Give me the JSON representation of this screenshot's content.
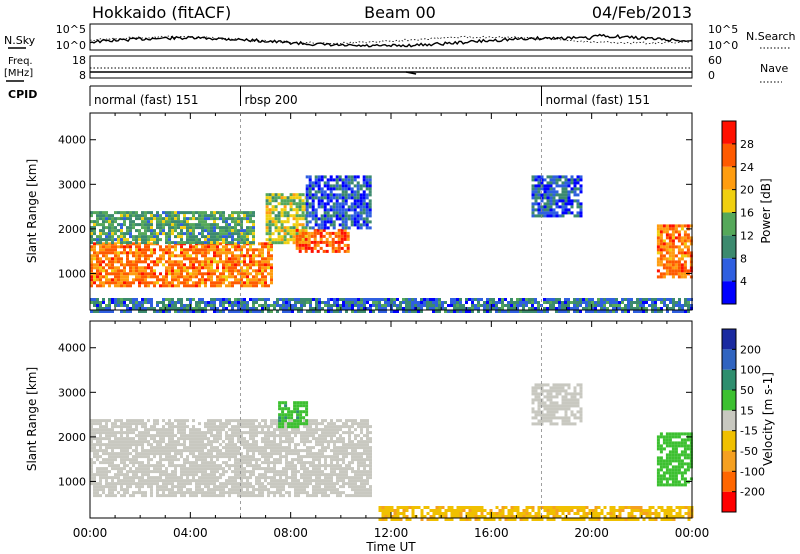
{
  "header": {
    "station": "Hokkaido (fitACF)",
    "beam": "Beam 00",
    "date": "04/Feb/2013"
  },
  "strip_labels": {
    "nsky": "N.Sky",
    "nsearch": "N.Search",
    "freq": "Freq.",
    "freq_unit": "[MHz]",
    "nave": "Nave",
    "cpid": "CPID",
    "noise_ticks": [
      "10^5",
      "10^0"
    ],
    "freq_ticks": [
      "18",
      "8"
    ],
    "nave_ticks": [
      "60",
      "0"
    ]
  },
  "cpid_segments": [
    {
      "label": "normal (fast) 151",
      "start_hour": 0,
      "end_hour": 6
    },
    {
      "label": "rbsp 200",
      "start_hour": 6,
      "end_hour": 18
    },
    {
      "label": "normal (fast) 151",
      "start_hour": 18,
      "end_hour": 24
    }
  ],
  "chart_data": [
    {
      "type": "heatmap",
      "parameter": "Power",
      "ylabel": "Slant Range [km]",
      "xlabel": "",
      "x_range_hours": [
        0,
        24
      ],
      "ylim": [
        180,
        4600
      ],
      "y_ticks": [
        1000,
        2000,
        3000,
        4000
      ],
      "colorbar_label": "Power [dB]",
      "colorbar_ticks": [
        28,
        24,
        20,
        16,
        12,
        8,
        4
      ],
      "colorbar_colors": [
        "#0000ff",
        "#2f5fe0",
        "#3c8a6e",
        "#55a85a",
        "#f0d010",
        "#ff9d10",
        "#ff5a00",
        "#ff1000"
      ],
      "regions": [
        {
          "t0": 0.0,
          "t1": 7.2,
          "r0": 700,
          "r1": 1700,
          "level": 24
        },
        {
          "t0": 0.0,
          "t1": 6.5,
          "r0": 1700,
          "r1": 2400,
          "level": 12
        },
        {
          "t0": 7.0,
          "t1": 8.6,
          "r0": 1700,
          "r1": 2800,
          "level": 16
        },
        {
          "t0": 8.2,
          "t1": 10.3,
          "r0": 1500,
          "r1": 2000,
          "level": 26
        },
        {
          "t0": 8.6,
          "t1": 11.2,
          "r0": 2000,
          "r1": 3200,
          "level": 6
        },
        {
          "t0": 17.6,
          "t1": 19.6,
          "r0": 2300,
          "r1": 3200,
          "level": 6
        },
        {
          "t0": 22.6,
          "t1": 24.0,
          "r0": 900,
          "r1": 2100,
          "level": 24
        },
        {
          "t0": 0.0,
          "t1": 24.0,
          "r0": 180,
          "r1": 450,
          "level": 8
        }
      ]
    },
    {
      "type": "heatmap",
      "parameter": "Velocity",
      "ylabel": "Slant Range [km]",
      "xlabel": "Time UT",
      "x_range_hours": [
        0,
        24
      ],
      "ylim": [
        180,
        4600
      ],
      "y_ticks": [
        1000,
        2000,
        3000,
        4000
      ],
      "x_tick_labels": [
        "00:00",
        "04:00",
        "08:00",
        "12:00",
        "16:00",
        "20:00",
        "00:00"
      ],
      "colorbar_label": "Velocity [m s-1]",
      "colorbar_ticks": [
        200,
        100,
        50,
        15,
        -15,
        -50,
        -100,
        -200
      ],
      "colorbar_colors": [
        "#ff0000",
        "#ff6600",
        "#f5a020",
        "#f0c000",
        "#c8c8c0",
        "#3cc030",
        "#2e8e6e",
        "#3064c0",
        "#1a2aa0"
      ],
      "regions": [
        {
          "t0": 0.0,
          "t1": 11.2,
          "r0": 700,
          "r1": 2400,
          "level": 0
        },
        {
          "t0": 7.5,
          "t1": 8.6,
          "r0": 2200,
          "r1": 2800,
          "level": 40
        },
        {
          "t0": 17.6,
          "t1": 19.6,
          "r0": 2300,
          "r1": 3200,
          "level": 0
        },
        {
          "t0": 22.6,
          "t1": 24.0,
          "r0": 900,
          "r1": 2100,
          "level": 30
        },
        {
          "t0": 11.5,
          "t1": 24.0,
          "r0": 180,
          "r1": 450,
          "level": -40
        }
      ]
    }
  ]
}
